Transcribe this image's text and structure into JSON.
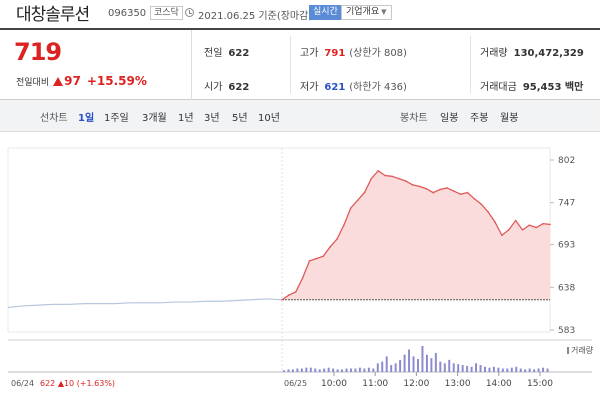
{
  "header": {
    "name": "대창솔루션",
    "code": "096350",
    "market": "코스닥",
    "date_text": "2021.06.25 기준(장마감)",
    "realtime_label": "실시간",
    "company_label": "기업개요"
  },
  "quote": {
    "price": "719",
    "change_label": "전일대비",
    "change_amount": "97",
    "change_pct": "+15.59%",
    "prev_close_label": "전일",
    "prev_close": "622",
    "open_label": "시가",
    "open": "622",
    "high_label": "고가",
    "high": "791",
    "upper_limit": "(상한가 808)",
    "low_label": "저가",
    "low": "621",
    "lower_limit": "(하한가 436)",
    "volume_label": "거래량",
    "volume": "130,472,329",
    "amount_label": "거래대금",
    "amount": "95,453 백만"
  },
  "tabs": {
    "line_label": "선차트",
    "line_items": [
      "1일",
      "1주일",
      "3개월",
      "1년",
      "3년",
      "5년",
      "10년"
    ],
    "active": "1일",
    "candle_label": "봉차트",
    "candle_items": [
      "일봉",
      "주봉",
      "월봉"
    ]
  },
  "chart_data": {
    "type": "line",
    "title": "",
    "y_ticks": [
      583,
      638,
      693,
      747,
      802
    ],
    "ylim": [
      583,
      802
    ],
    "baseline": 622,
    "previous_day": {
      "label": "06/24",
      "summary": {
        "close": "622",
        "change": "10",
        "pct": "(+1.63%)"
      },
      "y": [
        612,
        614,
        615,
        616,
        616,
        617,
        617,
        617,
        618,
        618,
        618,
        619,
        619,
        620,
        620,
        621,
        622,
        623,
        622
      ]
    },
    "today": {
      "label": "06/25",
      "x": [
        "09:00",
        "09:10",
        "09:20",
        "09:30",
        "09:40",
        "09:50",
        "10:00",
        "10:10",
        "10:20",
        "10:30",
        "10:40",
        "10:50",
        "11:00",
        "11:10",
        "11:20",
        "11:30",
        "11:40",
        "11:50",
        "12:00",
        "12:10",
        "12:20",
        "12:30",
        "12:40",
        "12:50",
        "13:00",
        "13:10",
        "13:20",
        "13:30",
        "13:40",
        "13:50",
        "14:00",
        "14:10",
        "14:20",
        "14:30",
        "14:40",
        "14:50",
        "15:00",
        "15:10",
        "15:20",
        "15:30"
      ],
      "y": [
        622,
        628,
        632,
        650,
        672,
        675,
        678,
        690,
        700,
        718,
        740,
        750,
        760,
        778,
        788,
        782,
        781,
        778,
        775,
        770,
        768,
        765,
        760,
        764,
        766,
        762,
        758,
        760,
        752,
        745,
        735,
        722,
        705,
        712,
        724,
        712,
        718,
        715,
        720,
        719
      ]
    },
    "x_tick_labels": [
      "10:00",
      "11:00",
      "12:00",
      "13:00",
      "14:00",
      "15:00"
    ],
    "volume_label": "거래량",
    "volume": [
      2,
      3,
      3,
      4,
      4,
      5,
      5,
      4,
      3,
      4,
      5,
      4,
      3,
      3,
      4,
      4,
      4,
      5,
      4,
      5,
      4,
      10,
      12,
      18,
      8,
      10,
      14,
      20,
      26,
      18,
      15,
      30,
      20,
      16,
      22,
      12,
      10,
      14,
      10,
      9,
      8,
      7,
      6,
      10,
      8,
      6,
      5,
      6,
      5,
      4,
      4,
      5,
      6,
      4,
      3,
      4,
      3,
      4,
      5,
      4
    ]
  },
  "colors": {
    "up": "#dd2222",
    "down": "#2a52c8",
    "area_fill": "#fbdcdc",
    "line": "#e05a5a",
    "prev_line": "#b7c8dd",
    "volume": "#8a8ad0"
  }
}
